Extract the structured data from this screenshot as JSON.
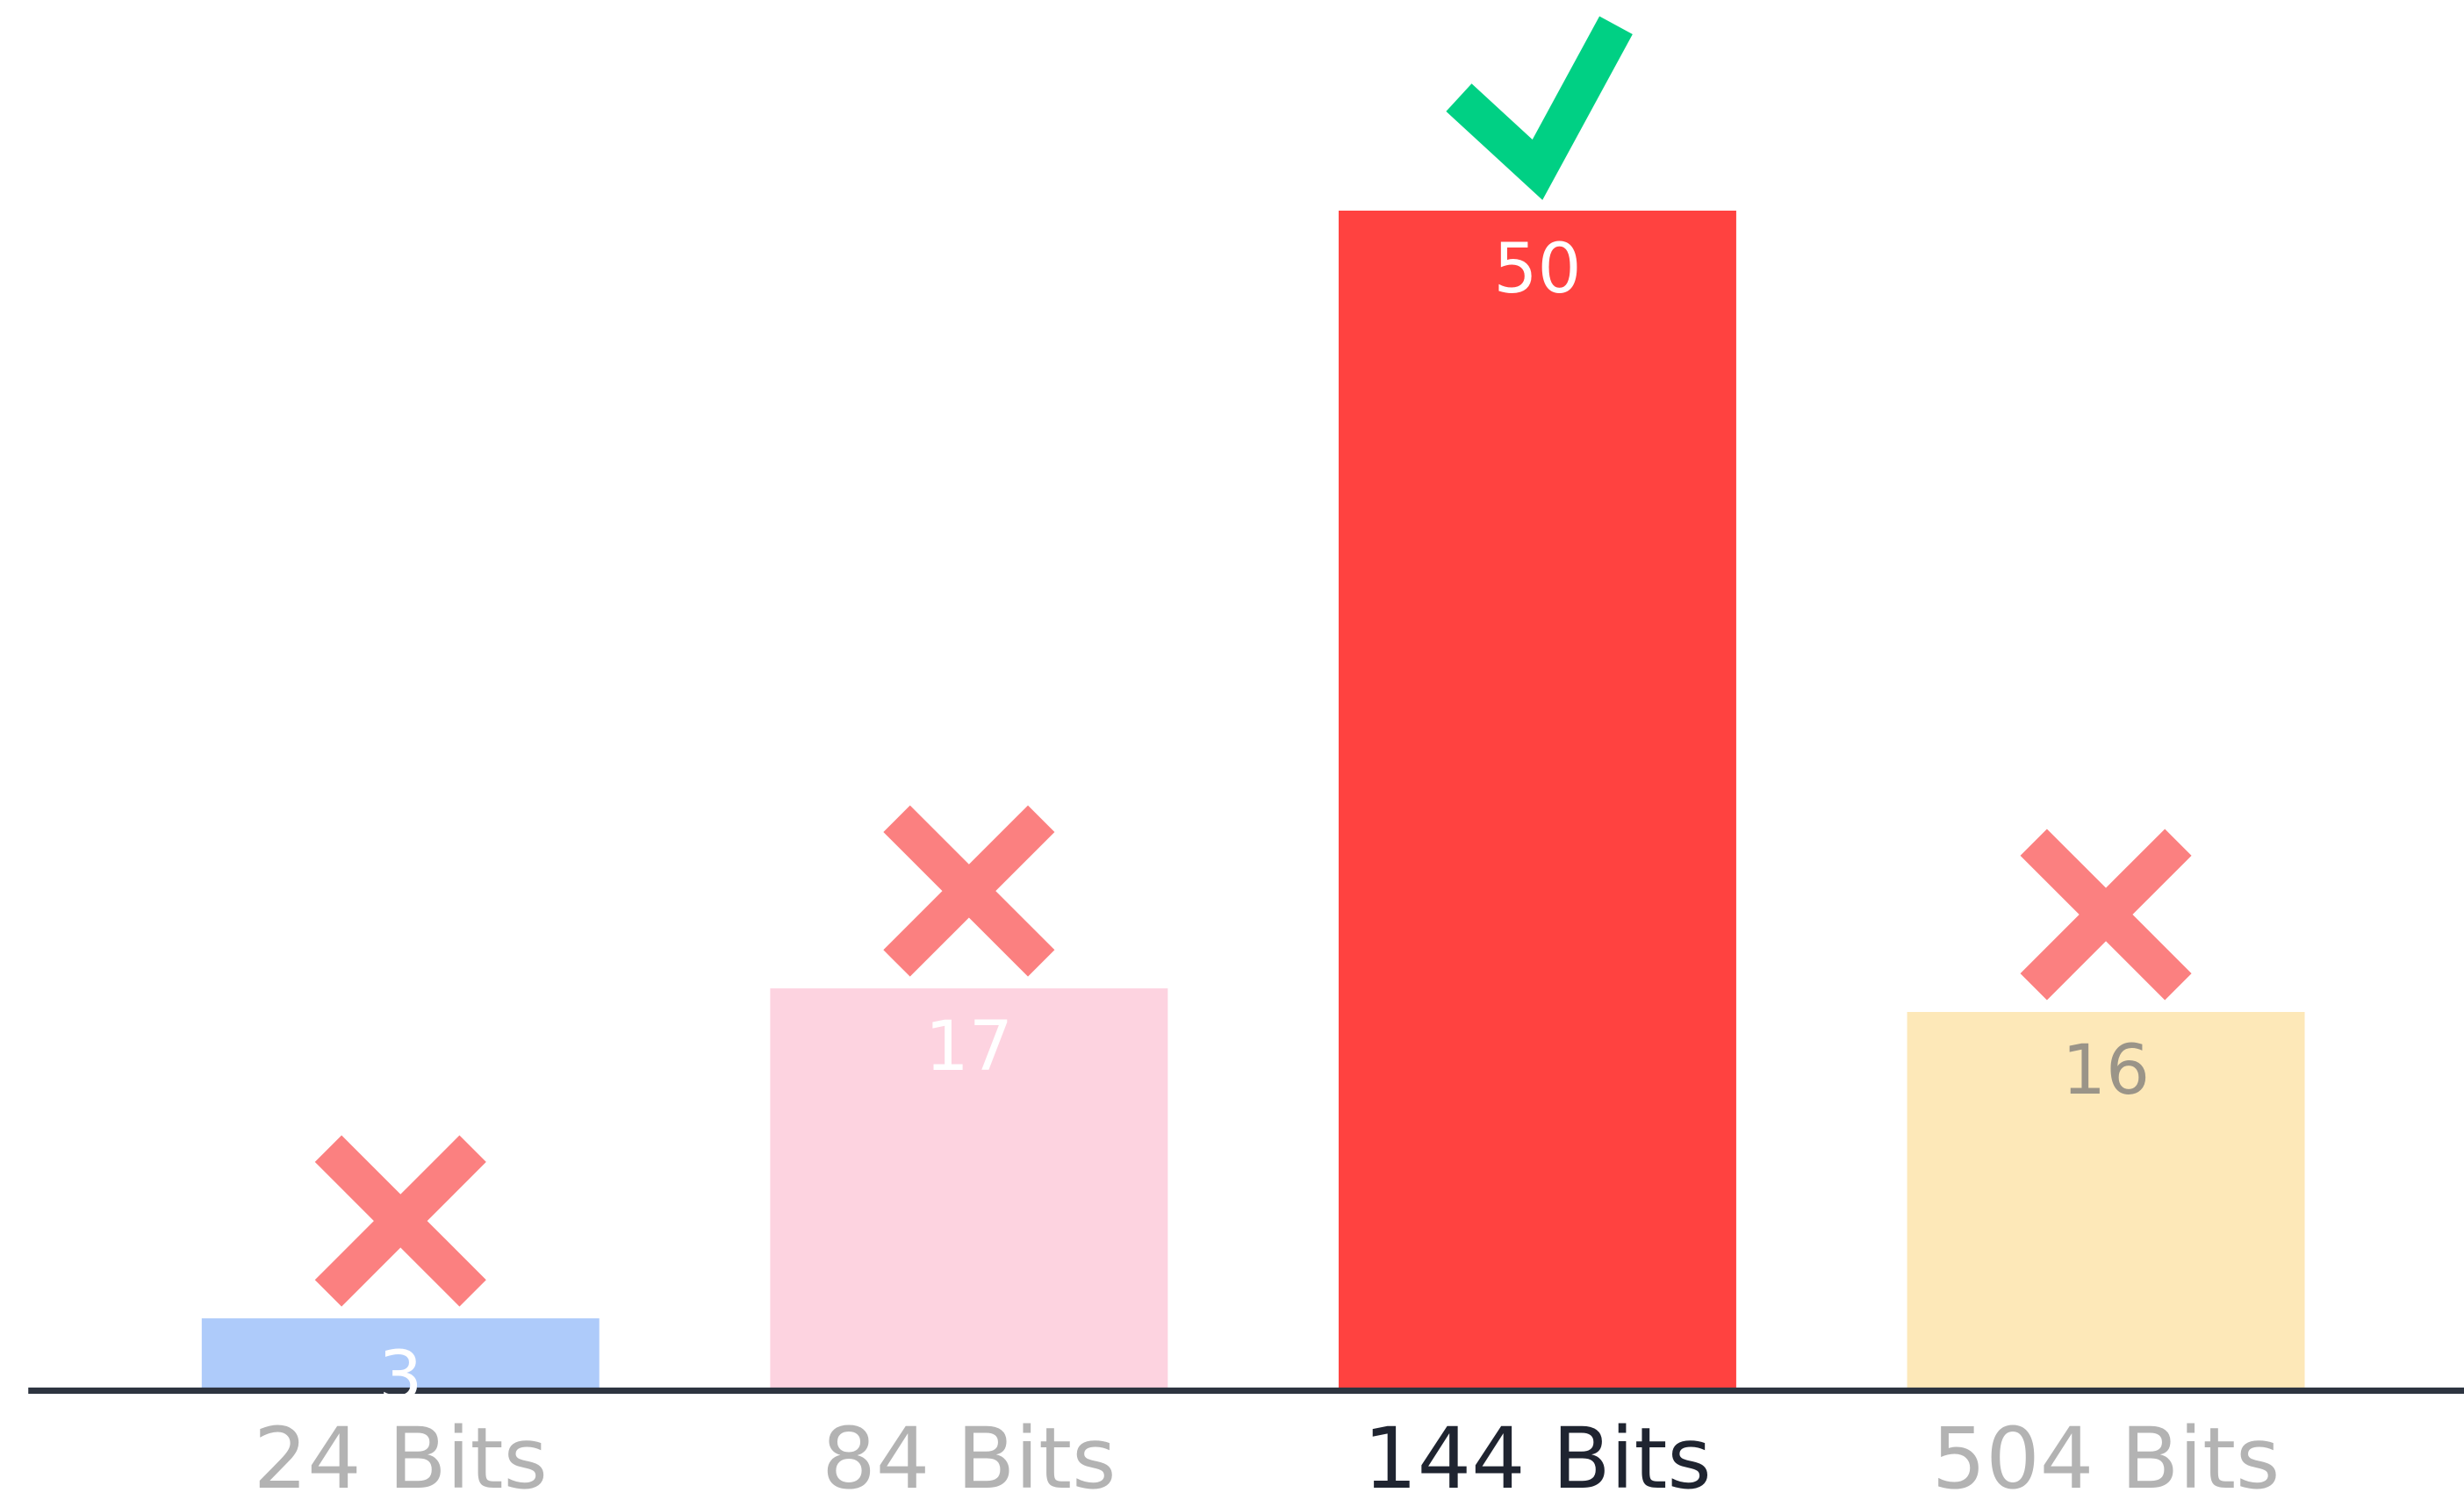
{
  "chart_data": {
    "type": "bar",
    "categories": [
      "24 Bits",
      "84 Bits",
      "144 Bits",
      "504 Bits"
    ],
    "values": [
      3,
      17,
      50,
      16
    ],
    "colors": [
      "#aecbfa",
      "#fdd3e0",
      "#ff4240",
      "#fde8b8"
    ],
    "value_label_colors": [
      "#ffffff",
      "#ffffff",
      "#ffffff",
      "#9a9488"
    ],
    "category_label_colors": [
      "#b3b3b3",
      "#b3b3b3",
      "#1f2430",
      "#b3b3b3"
    ],
    "markers": [
      "cross",
      "cross",
      "check",
      "cross"
    ],
    "ylim": [
      0,
      50
    ]
  }
}
